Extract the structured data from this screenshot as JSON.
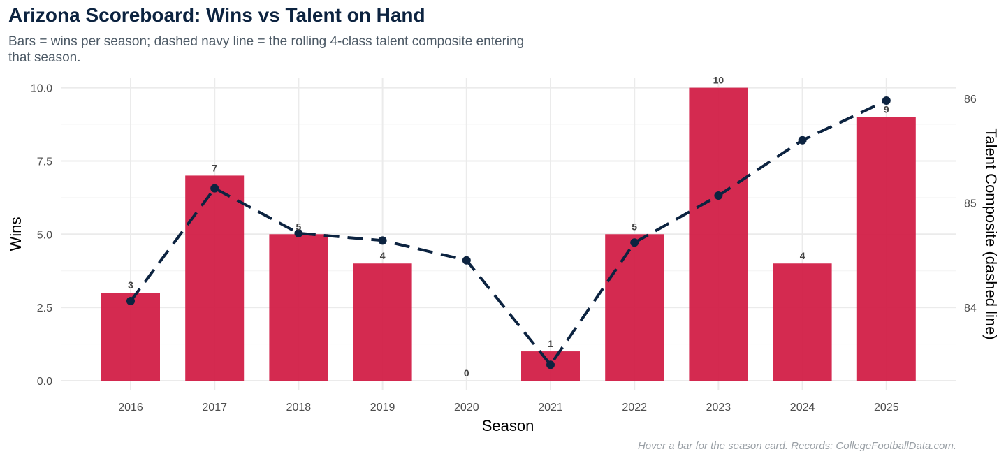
{
  "title": "Arizona Scoreboard: Wins vs Talent on Hand",
  "subtitle": "Bars = wins per season; dashed navy line = the rolling 4-class talent composite entering that season.",
  "caption": "Hover a bar for the season card. Records: CollegeFootballData.com.",
  "colors": {
    "bar": "#d21f47",
    "line": "#0c2340",
    "grid": "#ebebeb",
    "title": "#0c2340"
  },
  "chart_data": {
    "type": "bar",
    "categories": [
      "2016",
      "2017",
      "2018",
      "2019",
      "2020",
      "2021",
      "2022",
      "2023",
      "2024",
      "2025"
    ],
    "xlabel": "Season",
    "ylabel": "Wins",
    "y2label": "Talent Composite (dashed line)",
    "ylim": [
      0,
      10
    ],
    "y_ticks": [
      "0.0",
      "2.5",
      "5.0",
      "7.5",
      "10.0"
    ],
    "y2lim": [
      83.27,
      86.35
    ],
    "y2_ticks": [
      "84",
      "85",
      "86"
    ],
    "grid": true,
    "legend": "none",
    "series": [
      {
        "type": "bar",
        "values": [
          3,
          7,
          5,
          4,
          0,
          1,
          5,
          10,
          4,
          9
        ],
        "labels": [
          "3",
          "7",
          "5",
          "4",
          "0",
          "1",
          "5",
          "10",
          "4",
          "9"
        ]
      },
      {
        "type": "line",
        "style": "dashed",
        "axis": "right",
        "values": [
          84.06,
          85.14,
          84.71,
          84.64,
          84.45,
          83.45,
          84.62,
          85.07,
          85.6,
          85.98
        ]
      }
    ]
  }
}
